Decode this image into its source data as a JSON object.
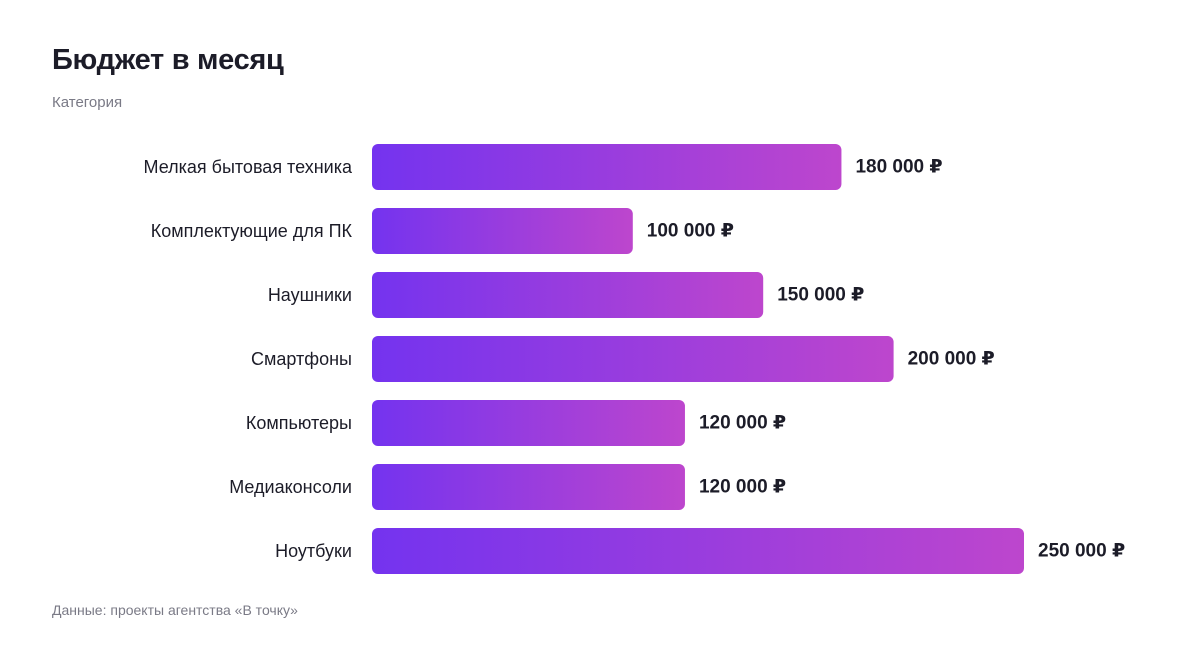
{
  "header": {
    "title": "Бюджет в месяц",
    "subtitle": "Категория"
  },
  "footer": {
    "source": "Данные: проекты агентства «В точку»"
  },
  "colors": {
    "bar_gradient_start": "#7433ef",
    "bar_gradient_end": "#bd46cd",
    "text_dark": "#1c1c28",
    "text_muted": "#7a7a86"
  },
  "chart_data": {
    "type": "bar",
    "orientation": "horizontal",
    "title": "Бюджет в месяц",
    "subtitle": "Категория",
    "categories": [
      "Мелкая бытовая техника",
      "Комплектующие для ПК",
      "Наушники",
      "Смартфоны",
      "Компьютеры",
      "Медиаконсоли",
      "Ноутбуки"
    ],
    "values": [
      180000,
      100000,
      150000,
      200000,
      120000,
      120000,
      250000
    ],
    "value_labels": [
      "180 000 ₽",
      "100 000 ₽",
      "150 000 ₽",
      "200 000 ₽",
      "120 000 ₽",
      "120 000 ₽",
      "250 000 ₽"
    ],
    "xlim": [
      0,
      250000
    ],
    "grid": false,
    "legend": "none"
  }
}
